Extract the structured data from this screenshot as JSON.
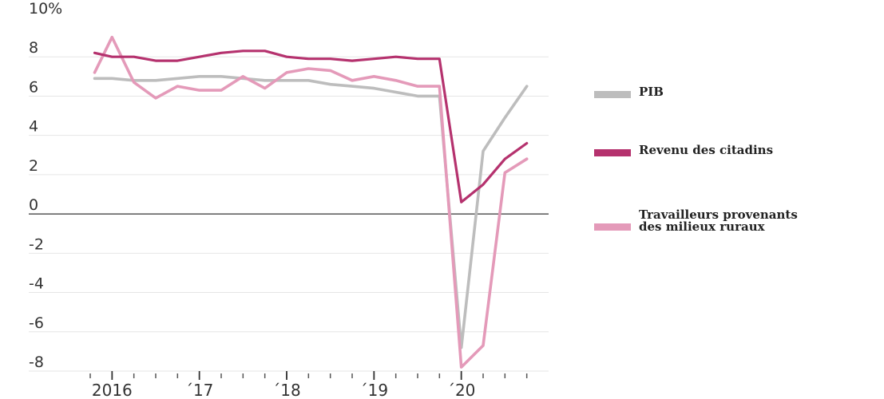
{
  "chart_data": {
    "type": "line",
    "y_unit_label": "10%",
    "ylim": [
      -8,
      10
    ],
    "y_ticks": [
      {
        "value": 10,
        "label": "10%"
      },
      {
        "value": 8,
        "label": "8"
      },
      {
        "value": 6,
        "label": "6"
      },
      {
        "value": 4,
        "label": "4"
      },
      {
        "value": 2,
        "label": "2"
      },
      {
        "value": 0,
        "label": "0"
      },
      {
        "value": -2,
        "label": "-2"
      },
      {
        "value": -4,
        "label": "-4"
      },
      {
        "value": -6,
        "label": "-6"
      },
      {
        "value": -8,
        "label": "-8"
      }
    ],
    "x_range": [
      2015.75,
      2021.0
    ],
    "x_ticks": [
      {
        "value": 2016.0,
        "label": "2016"
      },
      {
        "value": 2017.0,
        "label": "´17"
      },
      {
        "value": 2018.0,
        "label": "´18"
      },
      {
        "value": 2019.0,
        "label": "´19"
      },
      {
        "value": 2020.0,
        "label": "´20"
      }
    ],
    "grid": true,
    "legend_position": "right",
    "series": [
      {
        "name": "PIB",
        "color": "#bdbdbd",
        "points": [
          [
            2015.8,
            6.9
          ],
          [
            2016.0,
            6.9
          ],
          [
            2016.25,
            6.8
          ],
          [
            2016.5,
            6.8
          ],
          [
            2016.75,
            6.9
          ],
          [
            2017.0,
            7.0
          ],
          [
            2017.25,
            7.0
          ],
          [
            2017.5,
            6.9
          ],
          [
            2017.75,
            6.8
          ],
          [
            2018.0,
            6.8
          ],
          [
            2018.25,
            6.8
          ],
          [
            2018.5,
            6.6
          ],
          [
            2018.75,
            6.5
          ],
          [
            2019.0,
            6.4
          ],
          [
            2019.25,
            6.2
          ],
          [
            2019.5,
            6.0
          ],
          [
            2019.75,
            6.0
          ],
          [
            2020.0,
            -6.8
          ],
          [
            2020.25,
            3.2
          ],
          [
            2020.5,
            4.9
          ],
          [
            2020.75,
            6.5
          ]
        ]
      },
      {
        "name": "Revenu des citadins",
        "color": "#b5326e",
        "points": [
          [
            2015.8,
            8.2
          ],
          [
            2016.0,
            8.0
          ],
          [
            2016.25,
            8.0
          ],
          [
            2016.5,
            7.8
          ],
          [
            2016.75,
            7.8
          ],
          [
            2017.0,
            8.0
          ],
          [
            2017.25,
            8.2
          ],
          [
            2017.5,
            8.3
          ],
          [
            2017.75,
            8.3
          ],
          [
            2018.0,
            8.0
          ],
          [
            2018.25,
            7.9
          ],
          [
            2018.5,
            7.9
          ],
          [
            2018.75,
            7.8
          ],
          [
            2019.0,
            7.9
          ],
          [
            2019.25,
            8.0
          ],
          [
            2019.5,
            7.9
          ],
          [
            2019.75,
            7.9
          ],
          [
            2020.0,
            0.6
          ],
          [
            2020.25,
            1.5
          ],
          [
            2020.5,
            2.8
          ],
          [
            2020.75,
            3.6
          ]
        ]
      },
      {
        "name": "Travailleurs provenants des milieux ruraux",
        "color": "#e49ab9",
        "points": [
          [
            2015.8,
            7.2
          ],
          [
            2016.0,
            9.0
          ],
          [
            2016.25,
            6.7
          ],
          [
            2016.5,
            5.9
          ],
          [
            2016.75,
            6.5
          ],
          [
            2017.0,
            6.3
          ],
          [
            2017.25,
            6.3
          ],
          [
            2017.5,
            7.0
          ],
          [
            2017.75,
            6.4
          ],
          [
            2018.0,
            7.2
          ],
          [
            2018.25,
            7.4
          ],
          [
            2018.5,
            7.3
          ],
          [
            2018.75,
            6.8
          ],
          [
            2019.0,
            7.0
          ],
          [
            2019.25,
            6.8
          ],
          [
            2019.5,
            6.5
          ],
          [
            2019.75,
            6.5
          ],
          [
            2020.0,
            -7.8
          ],
          [
            2020.25,
            -6.7
          ],
          [
            2020.5,
            2.1
          ],
          [
            2020.75,
            2.8
          ]
        ]
      }
    ]
  },
  "legend": [
    {
      "label": "PIB",
      "color": "#bdbdbd"
    },
    {
      "label": "Revenu des citadins",
      "color": "#b5326e"
    },
    {
      "label": "Travailleurs provenants des milieux ruraux",
      "color": "#e49ab9"
    }
  ]
}
